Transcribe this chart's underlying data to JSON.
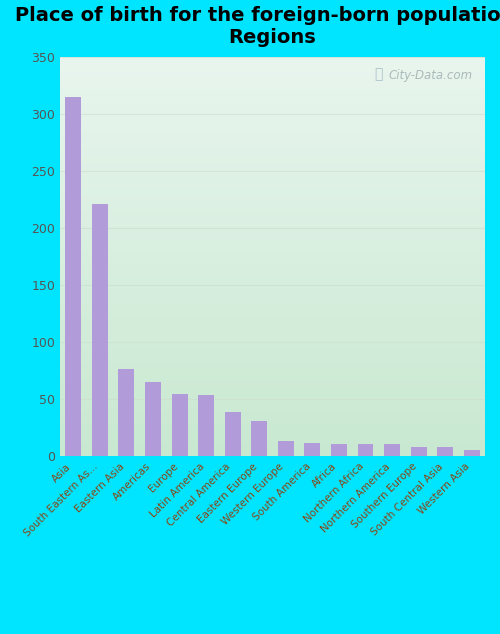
{
  "title": "Place of birth for the foreign-born population -\nRegions",
  "categories": [
    "Asia",
    "South Eastern As...",
    "Eastern Asia",
    "Americas",
    "Europe",
    "Latin America",
    "Central America",
    "Eastern Europe",
    "Western Europe",
    "South America",
    "Africa",
    "Northern Africa",
    "Northern America",
    "Southern Europe",
    "South Central Asia",
    "Western Asia"
  ],
  "values": [
    315,
    221,
    77,
    65,
    55,
    54,
    39,
    31,
    14,
    12,
    11,
    11,
    11,
    8,
    8,
    6
  ],
  "bar_color": "#b19cd9",
  "background_color_outer": "#00e5ff",
  "grad_top_left": "#c8e8d0",
  "grad_top_right": "#e8f5ee",
  "grad_bottom_left": "#d8f0e0",
  "grad_bottom_right": "#f5faf5",
  "ylim": [
    0,
    350
  ],
  "yticks": [
    0,
    50,
    100,
    150,
    200,
    250,
    300,
    350
  ],
  "title_fontsize": 14,
  "ytick_label_color": "#555555",
  "xtick_label_color": "#8B4513",
  "watermark_text": "City-Data.com",
  "grid_color": "#ccddcc",
  "grid_alpha": 0.6
}
